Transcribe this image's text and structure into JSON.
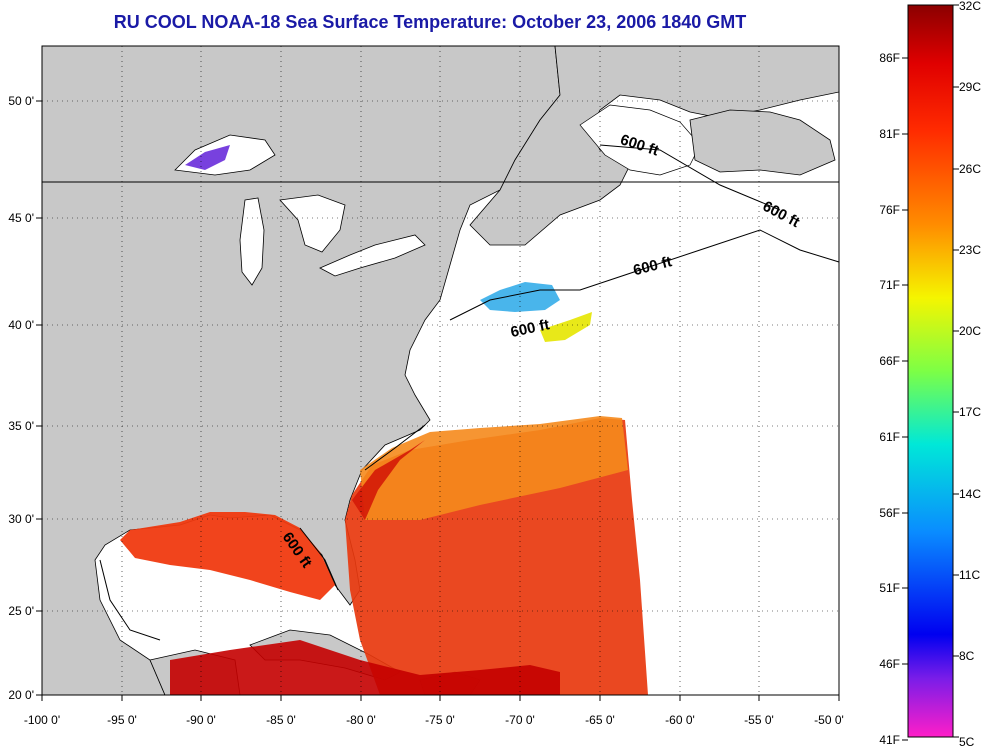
{
  "title": "RU COOL  NOAA-18  Sea Surface Temperature:  October 23, 2006 1840 GMT",
  "map": {
    "lon_range": [
      -100,
      -50
    ],
    "lat_range": [
      20,
      52.5
    ],
    "lon_ticks": [
      "-100 0'",
      "-95 0'",
      "-90 0'",
      "-85 0'",
      "-80 0'",
      "-75 0'",
      "-70 0'",
      "-65 0'",
      "-60 0'",
      "-55 0'",
      "-50 0'"
    ],
    "lat_ticks": [
      "20 0'",
      "25 0'",
      "30 0'",
      "35 0'",
      "40 0'",
      "45 0'",
      "50 0'"
    ],
    "contour_label": "600 ft",
    "colors": {
      "land": "#c8c8c8",
      "ocean": "#ffffff",
      "title": "#1a1aa6"
    }
  },
  "colorbar": {
    "celsius": [
      "32C",
      "29C",
      "26C",
      "23C",
      "20C",
      "17C",
      "14C",
      "11C",
      "8C",
      "5C"
    ],
    "fahrenheit": [
      "86F",
      "81F",
      "76F",
      "71F",
      "66F",
      "61F",
      "56F",
      "51F",
      "46F",
      "41F"
    ]
  }
}
